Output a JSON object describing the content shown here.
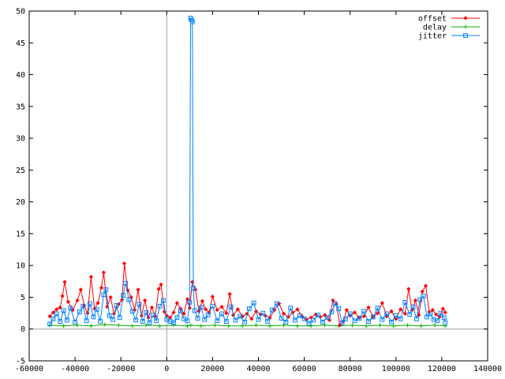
{
  "chart_data": {
    "type": "line",
    "title": "",
    "xlabel": "",
    "ylabel": "",
    "xlim": [
      -60000,
      140000
    ],
    "ylim": [
      -5,
      50
    ],
    "xticks": [
      -60000,
      -40000,
      -20000,
      0,
      20000,
      40000,
      60000,
      80000,
      100000,
      120000,
      140000
    ],
    "yticks": [
      -5,
      0,
      5,
      10,
      15,
      20,
      25,
      30,
      35,
      40,
      45,
      50
    ],
    "xtick_labels": [
      "-60000",
      "-40000",
      "-20000",
      "0",
      "20000",
      "40000",
      "60000",
      "80000",
      "100000",
      "120000",
      "140000"
    ],
    "ytick_labels": [
      "-5",
      "0",
      "5",
      "10",
      "15",
      "20",
      "25",
      "30",
      "35",
      "40",
      "45",
      "50"
    ],
    "zero_axes": true,
    "grid": false,
    "legend_position": "top-right",
    "series": [
      {
        "name": "offset",
        "color": "#ff0000",
        "marker": "diamond",
        "x": [
          -51000,
          -49500,
          -48000,
          -46500,
          -45500,
          -44500,
          -43000,
          -41000,
          -39000,
          -37500,
          -36000,
          -34500,
          -33000,
          -31500,
          -30000,
          -28500,
          -27500,
          -26000,
          -24500,
          -23000,
          -21000,
          -19500,
          -18500,
          -17000,
          -15500,
          -14000,
          -12500,
          -11000,
          -9500,
          -8000,
          -6500,
          -5000,
          -3500,
          -2500,
          -1000,
          0,
          1500,
          3000,
          4500,
          6000,
          7500,
          9000,
          10000,
          11200,
          12500,
          14000,
          15500,
          17000,
          18500,
          20000,
          22000,
          24000,
          26000,
          27500,
          29000,
          31000,
          33000,
          35000,
          37000,
          39000,
          41000,
          43000,
          45000,
          47000,
          49000,
          51000,
          53000,
          55000,
          57000,
          59000,
          61000,
          63000,
          65000,
          67000,
          69000,
          71000,
          72500,
          74000,
          75500,
          77000,
          78500,
          80000,
          82000,
          84000,
          86000,
          88000,
          90000,
          92000,
          94000,
          96000,
          98000,
          100000,
          102000,
          104000,
          105500,
          107000,
          108500,
          110000,
          111500,
          113000,
          114500,
          116000,
          117500,
          119000,
          120500,
          121500
        ],
        "y": [
          2.0,
          2.6,
          3.1,
          3.4,
          5.2,
          7.4,
          4.3,
          3.0,
          4.5,
          6.2,
          3.7,
          2.5,
          8.2,
          3.2,
          4.1,
          6.5,
          8.9,
          3.5,
          5.0,
          2.4,
          3.9,
          4.6,
          10.3,
          6.1,
          5.0,
          3.0,
          6.2,
          2.1,
          4.5,
          1.8,
          3.4,
          2.0,
          6.3,
          7.0,
          2.7,
          2.1,
          1.8,
          2.6,
          4.1,
          3.2,
          2.4,
          4.7,
          3.3,
          7.4,
          6.2,
          2.8,
          4.4,
          3.1,
          2.6,
          5.1,
          3.0,
          3.5,
          2.5,
          5.5,
          2.2,
          3.1,
          2.0,
          2.4,
          1.6,
          2.8,
          2.3,
          2.1,
          1.8,
          3.0,
          4.0,
          2.4,
          1.9,
          2.6,
          3.1,
          2.0,
          1.5,
          1.8,
          2.3,
          1.9,
          2.2,
          1.4,
          4.5,
          3.9,
          0.6,
          1.2,
          3.0,
          2.1,
          2.6,
          1.8,
          2.0,
          3.4,
          1.9,
          2.5,
          4.1,
          2.0,
          2.8,
          1.6,
          3.1,
          2.4,
          6.3,
          3.0,
          4.5,
          2.2,
          5.9,
          6.8,
          2.7,
          3.0,
          2.3,
          1.9,
          3.2,
          2.6
        ]
      },
      {
        "name": "delay",
        "color": "#00b000",
        "marker": "plus",
        "x": [
          -51000,
          -45000,
          -39000,
          -33000,
          -27000,
          -21000,
          -15000,
          -9000,
          -3000,
          3000,
          9000,
          10500,
          15000,
          21000,
          27000,
          33000,
          39000,
          45000,
          51000,
          57000,
          63000,
          69000,
          75000,
          81000,
          87000,
          93000,
          99000,
          105000,
          111000,
          117000,
          121500
        ],
        "y": [
          0.6,
          0.5,
          0.6,
          0.5,
          0.7,
          0.6,
          0.5,
          0.6,
          0.5,
          0.6,
          0.5,
          0.6,
          0.5,
          0.6,
          0.5,
          0.5,
          0.6,
          0.5,
          0.6,
          0.5,
          0.5,
          0.6,
          0.5,
          0.6,
          0.5,
          0.6,
          0.5,
          0.6,
          0.5,
          0.6,
          0.5
        ]
      },
      {
        "name": "jitter",
        "color": "#0080ff",
        "marker": "square",
        "x": [
          -51000,
          -49500,
          -48000,
          -46500,
          -45000,
          -43500,
          -42000,
          -40000,
          -38000,
          -36500,
          -35000,
          -33500,
          -32000,
          -30500,
          -29000,
          -27500,
          -26500,
          -25000,
          -23500,
          -22000,
          -20500,
          -19000,
          -18000,
          -16500,
          -15000,
          -13500,
          -12000,
          -10500,
          -9000,
          -7500,
          -6000,
          -4500,
          -3000,
          -1500,
          0,
          1500,
          3000,
          4500,
          6000,
          7500,
          9000,
          10000,
          10400,
          10800,
          11200,
          11600,
          12200,
          13500,
          15000,
          16500,
          18000,
          20000,
          22000,
          24000,
          26000,
          28000,
          30000,
          32000,
          34000,
          36000,
          38000,
          40000,
          42000,
          44000,
          46000,
          48000,
          50000,
          52000,
          54000,
          56000,
          58000,
          60000,
          62000,
          64000,
          66000,
          68000,
          70000,
          72000,
          73500,
          75000,
          76500,
          78000,
          80000,
          82000,
          84000,
          86000,
          88000,
          90000,
          92000,
          94000,
          96000,
          98000,
          100000,
          102000,
          104000,
          106000,
          107500,
          109000,
          110500,
          112000,
          113500,
          115000,
          116500,
          118000,
          119500,
          121000,
          121500
        ],
        "y": [
          0.8,
          1.6,
          2.4,
          1.2,
          2.9,
          1.4,
          3.3,
          1.1,
          2.7,
          3.6,
          1.3,
          4.0,
          1.9,
          3.1,
          1.2,
          5.4,
          6.2,
          2.1,
          1.5,
          3.7,
          1.8,
          5.3,
          7.2,
          4.6,
          2.8,
          1.4,
          3.9,
          1.2,
          2.6,
          1.0,
          2.2,
          1.3,
          3.6,
          4.5,
          1.5,
          1.2,
          1.0,
          1.8,
          2.9,
          1.6,
          1.3,
          4.2,
          48.9,
          48.6,
          48.3,
          6.4,
          2.9,
          1.7,
          3.4,
          1.5,
          2.2,
          3.6,
          1.3,
          2.4,
          1.2,
          3.5,
          1.4,
          2.0,
          1.1,
          3.2,
          4.1,
          1.5,
          2.5,
          1.2,
          3.0,
          4.0,
          1.7,
          1.1,
          3.3,
          1.4,
          2.1,
          1.6,
          0.9,
          1.4,
          2.2,
          1.1,
          1.8,
          2.7,
          4.0,
          3.2,
          1.0,
          1.6,
          2.4,
          1.3,
          1.7,
          2.8,
          1.2,
          1.9,
          3.3,
          1.5,
          2.4,
          1.1,
          2.1,
          1.6,
          4.2,
          2.3,
          3.5,
          1.6,
          4.6,
          5.2,
          1.9,
          2.4,
          1.5,
          1.3,
          2.5,
          1.8,
          1.0
        ]
      }
    ]
  }
}
